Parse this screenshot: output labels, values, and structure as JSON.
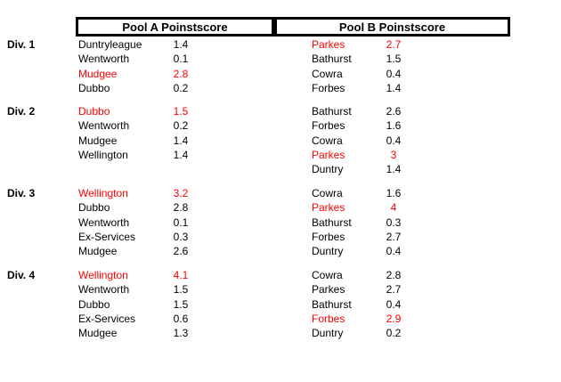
{
  "header": {
    "pool_a_label": "Pool A Poinstscore",
    "pool_b_label": "Pool B Poinstscore"
  },
  "colors": {
    "highlight": "#ff0000",
    "text": "#000000",
    "border": "#000000"
  },
  "divisions": [
    {
      "label": "Div. 1",
      "pool_a": [
        {
          "team": "Duntryleague",
          "score": "1.4",
          "highlight": false
        },
        {
          "team": "Wentworth",
          "score": "0.1",
          "highlight": false
        },
        {
          "team": "Mudgee",
          "score": "2.8",
          "highlight": true
        },
        {
          "team": "Dubbo",
          "score": "0.2",
          "highlight": false
        }
      ],
      "pool_b": [
        {
          "team": "Parkes",
          "score": "2.7",
          "highlight": true
        },
        {
          "team": "Bathurst",
          "score": "1.5",
          "highlight": false
        },
        {
          "team": "Cowra",
          "score": "0.4",
          "highlight": false
        },
        {
          "team": "Forbes",
          "score": "1.4",
          "highlight": false
        }
      ]
    },
    {
      "label": "Div. 2",
      "pool_a": [
        {
          "team": "Dubbo",
          "score": "1.5",
          "highlight": true
        },
        {
          "team": "Wentworth",
          "score": "0.2",
          "highlight": false
        },
        {
          "team": "Mudgee",
          "score": "1.4",
          "highlight": false
        },
        {
          "team": "Wellington",
          "score": "1.4",
          "highlight": false
        }
      ],
      "pool_b": [
        {
          "team": "Bathurst",
          "score": "2.6",
          "highlight": false
        },
        {
          "team": "Forbes",
          "score": "1.6",
          "highlight": false
        },
        {
          "team": "Cowra",
          "score": "0.4",
          "highlight": false
        },
        {
          "team": "Parkes",
          "score": "3",
          "highlight": true
        },
        {
          "team": "Duntry",
          "score": "1.4",
          "highlight": false
        }
      ]
    },
    {
      "label": "Div. 3",
      "pool_a": [
        {
          "team": "Wellington",
          "score": "3.2",
          "highlight": true
        },
        {
          "team": "Dubbo",
          "score": "2.8",
          "highlight": false
        },
        {
          "team": "Wentworth",
          "score": "0.1",
          "highlight": false
        },
        {
          "team": "Ex-Services",
          "score": "0.3",
          "highlight": false
        },
        {
          "team": "Mudgee",
          "score": "2.6",
          "highlight": false
        }
      ],
      "pool_b": [
        {
          "team": "Cowra",
          "score": "1.6",
          "highlight": false
        },
        {
          "team": "Parkes",
          "score": "4",
          "highlight": true
        },
        {
          "team": "Bathurst",
          "score": "0.3",
          "highlight": false
        },
        {
          "team": "Forbes",
          "score": "2.7",
          "highlight": false
        },
        {
          "team": "Duntry",
          "score": "0.4",
          "highlight": false
        }
      ]
    },
    {
      "label": "Div. 4",
      "pool_a": [
        {
          "team": "Wellington",
          "score": "4.1",
          "highlight": true
        },
        {
          "team": "Wentworth",
          "score": "1.5",
          "highlight": false
        },
        {
          "team": "Dubbo",
          "score": "1.5",
          "highlight": false
        },
        {
          "team": "Ex-Services",
          "score": "0.6",
          "highlight": false
        },
        {
          "team": "Mudgee",
          "score": "1.3",
          "highlight": false
        }
      ],
      "pool_b": [
        {
          "team": "Cowra",
          "score": "2.8",
          "highlight": false
        },
        {
          "team": "Parkes",
          "score": "2.7",
          "highlight": false
        },
        {
          "team": "Bathurst",
          "score": "0.4",
          "highlight": false
        },
        {
          "team": "Forbes",
          "score": "2.9",
          "highlight": true
        },
        {
          "team": "Duntry",
          "score": "0.2",
          "highlight": false
        }
      ]
    }
  ]
}
